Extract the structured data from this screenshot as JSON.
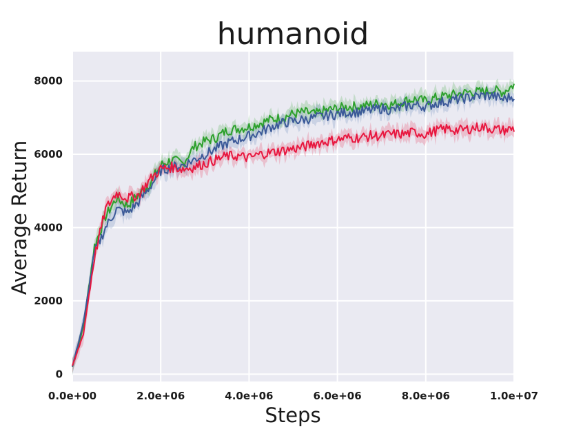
{
  "chart_data": {
    "type": "line",
    "title": "humanoid",
    "xlabel": "Steps",
    "ylabel": "Average Return",
    "xlim": [
      0,
      10000000
    ],
    "ylim": [
      -200,
      8800
    ],
    "xticks": [
      0,
      2000000,
      4000000,
      6000000,
      8000000,
      10000000
    ],
    "xtick_labels": [
      "0.0e+00",
      "2.0e+06",
      "4.0e+06",
      "6.0e+06",
      "8.0e+06",
      "1.0e+07"
    ],
    "yticks": [
      0,
      2000,
      4000,
      6000,
      8000
    ],
    "ytick_labels": [
      "0",
      "2000",
      "4000",
      "6000",
      "8000"
    ],
    "grid": true,
    "legend": "none",
    "series": [
      {
        "color": "#2ca02c",
        "band_color": "#2ca02c",
        "x": [
          0,
          250000,
          500000,
          750000,
          1000000,
          1250000,
          1500000,
          1750000,
          2000000,
          2250000,
          2500000,
          2750000,
          3000000,
          3250000,
          3500000,
          3750000,
          4000000,
          4250000,
          4500000,
          4750000,
          5000000,
          5250000,
          5500000,
          5750000,
          6000000,
          6250000,
          6500000,
          6750000,
          7000000,
          7250000,
          7500000,
          7750000,
          8000000,
          8250000,
          8500000,
          8750000,
          9000000,
          9250000,
          9500000,
          9750000,
          10000000
        ],
        "y": [
          200,
          1300,
          3500,
          4300,
          4800,
          4600,
          4900,
          5200,
          5700,
          5850,
          5750,
          6200,
          6350,
          6450,
          6650,
          6700,
          6750,
          6850,
          6950,
          7000,
          7100,
          7150,
          7100,
          7200,
          7250,
          7300,
          7300,
          7350,
          7400,
          7350,
          7450,
          7500,
          7450,
          7550,
          7600,
          7650,
          7700,
          7700,
          7750,
          7700,
          7900
        ]
      },
      {
        "color": "#3b5998",
        "band_color": "#4c72b0",
        "x": [
          0,
          250000,
          500000,
          750000,
          1000000,
          1250000,
          1500000,
          1750000,
          2000000,
          2250000,
          2500000,
          2750000,
          3000000,
          3250000,
          3500000,
          3750000,
          4000000,
          4250000,
          4500000,
          4750000,
          5000000,
          5250000,
          5500000,
          5750000,
          6000000,
          6250000,
          6500000,
          6750000,
          7000000,
          7250000,
          7500000,
          7750000,
          8000000,
          8250000,
          8500000,
          8750000,
          9000000,
          9250000,
          9500000,
          9750000,
          10000000
        ],
        "y": [
          200,
          1400,
          3300,
          4000,
          4500,
          4400,
          4700,
          5100,
          5550,
          5650,
          5700,
          5850,
          6000,
          6150,
          6300,
          6400,
          6500,
          6600,
          6750,
          6850,
          6900,
          6950,
          7000,
          7050,
          7100,
          7150,
          7150,
          7200,
          7250,
          7200,
          7300,
          7350,
          7300,
          7400,
          7450,
          7500,
          7550,
          7600,
          7600,
          7500,
          7600
        ]
      },
      {
        "color": "#e8173f",
        "band_color": "#e8173f",
        "x": [
          0,
          250000,
          500000,
          750000,
          1000000,
          1250000,
          1500000,
          1750000,
          2000000,
          2250000,
          2500000,
          2750000,
          3000000,
          3250000,
          3500000,
          3750000,
          4000000,
          4250000,
          4500000,
          4750000,
          5000000,
          5250000,
          5500000,
          5750000,
          6000000,
          6250000,
          6500000,
          6750000,
          7000000,
          7250000,
          7500000,
          7750000,
          8000000,
          8250000,
          8500000,
          8750000,
          9000000,
          9250000,
          9500000,
          9750000,
          10000000
        ],
        "y": [
          200,
          1100,
          3200,
          4500,
          4950,
          4800,
          4900,
          5300,
          5600,
          5650,
          5600,
          5650,
          5750,
          5850,
          5950,
          5950,
          5900,
          6000,
          6050,
          6100,
          6150,
          6200,
          6300,
          6350,
          6400,
          6450,
          6450,
          6500,
          6500,
          6550,
          6550,
          6600,
          6550,
          6650,
          6700,
          6650,
          6700,
          6750,
          6700,
          6650,
          6700
        ]
      }
    ]
  }
}
